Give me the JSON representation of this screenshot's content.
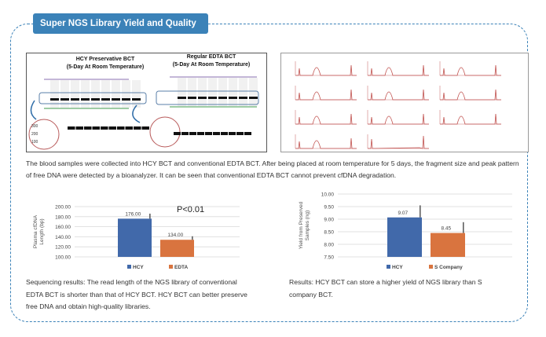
{
  "section_title": "Super NGS Library Yield and Quality",
  "gel_image": {
    "left_title": [
      "HCY Preservative BCT",
      "(5-Day At Room Temperature)"
    ],
    "right_title": [
      "Regular EDTA BCT",
      "(5-Day At Room Temperature)"
    ],
    "zoom_ladder_labels": [
      "300",
      "200",
      "100"
    ]
  },
  "description": "The blood samples were collected into HCY BCT and conventional EDTA BCT. After being placed at room temperature for 5 days, the fragment size and peak pattern of free DNA were detected by a bioanalyzer. It can be seen that conventional EDTA BCT cannot prevent cfDNA degradation.",
  "chart_data": [
    {
      "type": "bar",
      "ylabel": "Plasma cfDNA Length (bp)",
      "ylim": [
        100,
        200
      ],
      "yticks": [
        "100.00",
        "120.00",
        "140.00",
        "160.00",
        "180.00",
        "200.00"
      ],
      "categories": [
        "HCY",
        "EDTA"
      ],
      "values": [
        176.0,
        134.0
      ],
      "value_labels": [
        "176.00",
        "134.00"
      ],
      "error_upper": [
        186,
        141
      ],
      "colors": [
        "#4169aa",
        "#d9743f"
      ],
      "annotation": "P<0.01",
      "grid": true,
      "legend": "bottom"
    },
    {
      "type": "bar",
      "ylabel": "Yield from Preserved Samples (ng)",
      "ylim": [
        7.5,
        10.0
      ],
      "yticks": [
        "7.50",
        "8.00",
        "8.50",
        "9.00",
        "9.50",
        "10.00"
      ],
      "categories": [
        "HCY",
        "S Company"
      ],
      "values": [
        9.07,
        8.45
      ],
      "value_labels": [
        "9.07",
        "8.45"
      ],
      "error_upper": [
        9.55,
        8.88
      ],
      "colors": [
        "#4169aa",
        "#d9743f"
      ],
      "grid": true,
      "legend": "bottom"
    }
  ],
  "captions": {
    "left": "Sequencing results: The read length of the NGS library of conventional EDTA BCT is shorter than that of HCY BCT. HCY BCT can better preserve free DNA and obtain high-quality libraries.",
    "right": "Results: HCY BCT can store a higher yield of NGS library than S company BCT."
  },
  "colors": {
    "accent": "#3b82b8",
    "hcy": "#4169aa",
    "edta": "#d9743f"
  }
}
